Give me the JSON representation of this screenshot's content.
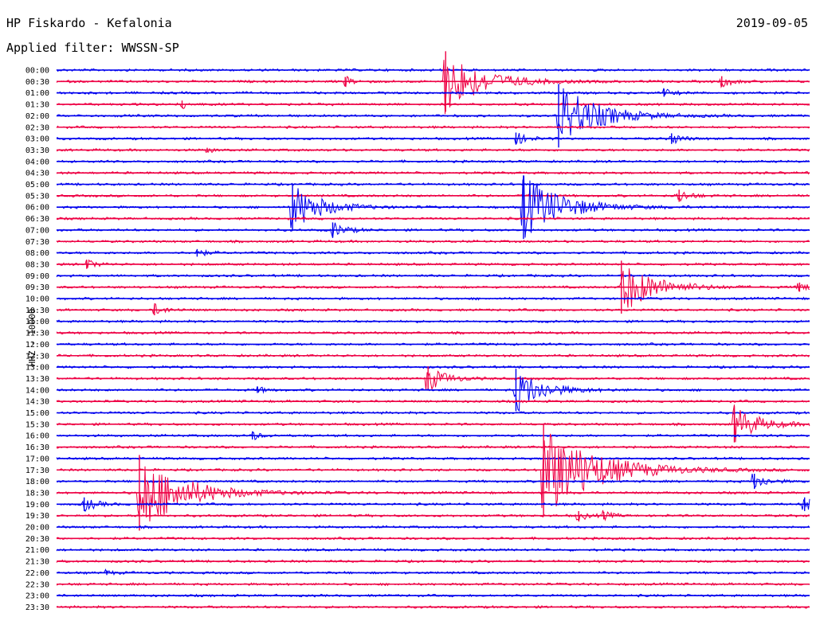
{
  "header": {
    "station": "HP Fiskardo - Kefalonia",
    "filter": "Applied filter: WWSSN-SP",
    "date": "2019-09-05"
  },
  "colors": {
    "even_trace": "#0000ee",
    "odd_trace": "#ee0044",
    "text": "#000000"
  },
  "chart_data": {
    "type": "line",
    "title": "HP Fiskardo - Kefalonia",
    "subtitle": "Applied filter: WWSSN-SP",
    "ylabel": "HHZ - 10000",
    "xlabel": "",
    "row_labels": [
      "00:00",
      "00:30",
      "01:00",
      "01:30",
      "02:00",
      "02:30",
      "03:00",
      "03:30",
      "04:00",
      "04:30",
      "05:00",
      "05:30",
      "06:00",
      "06:30",
      "07:00",
      "07:30",
      "08:00",
      "08:30",
      "09:00",
      "09:30",
      "10:00",
      "10:30",
      "11:00",
      "11:30",
      "12:00",
      "12:30",
      "13:00",
      "13:30",
      "14:00",
      "14:30",
      "15:00",
      "15:30",
      "16:00",
      "16:30",
      "17:00",
      "17:30",
      "18:00",
      "18:30",
      "19:00",
      "19:30",
      "20:00",
      "20:30",
      "21:00",
      "21:30",
      "22:00",
      "22:30",
      "23:00",
      "23:30"
    ],
    "row_minutes": 30,
    "events": [
      {
        "row": "00:30",
        "minute": 15.5,
        "amplitude": 40
      },
      {
        "row": "00:30",
        "minute": 11.5,
        "amplitude": 6
      },
      {
        "row": "00:30",
        "minute": 26.5,
        "amplitude": 7
      },
      {
        "row": "01:00",
        "minute": 24.2,
        "amplitude": 5
      },
      {
        "row": "01:30",
        "minute": 5.0,
        "amplitude": 5
      },
      {
        "row": "02:00",
        "minute": 20.0,
        "amplitude": 42
      },
      {
        "row": "03:00",
        "minute": 18.3,
        "amplitude": 8
      },
      {
        "row": "03:00",
        "minute": 24.5,
        "amplitude": 7
      },
      {
        "row": "03:30",
        "minute": 6.0,
        "amplitude": 3
      },
      {
        "row": "05:30",
        "minute": 24.8,
        "amplitude": 8
      },
      {
        "row": "06:00",
        "minute": 9.4,
        "amplitude": 30
      },
      {
        "row": "06:00",
        "minute": 18.6,
        "amplitude": 42
      },
      {
        "row": "07:00",
        "minute": 11.0,
        "amplitude": 10
      },
      {
        "row": "08:00",
        "minute": 5.6,
        "amplitude": 5
      },
      {
        "row": "08:30",
        "minute": 1.2,
        "amplitude": 6
      },
      {
        "row": "09:30",
        "minute": 22.5,
        "amplitude": 35
      },
      {
        "row": "09:30",
        "minute": 29.6,
        "amplitude": 6
      },
      {
        "row": "10:30",
        "minute": 3.9,
        "amplitude": 7
      },
      {
        "row": "13:30",
        "minute": 14.8,
        "amplitude": 16
      },
      {
        "row": "14:00",
        "minute": 18.3,
        "amplitude": 28
      },
      {
        "row": "14:00",
        "minute": 8.0,
        "amplitude": 4
      },
      {
        "row": "15:30",
        "minute": 27.0,
        "amplitude": 24
      },
      {
        "row": "16:00",
        "minute": 7.8,
        "amplitude": 5
      },
      {
        "row": "17:30",
        "minute": 19.4,
        "amplitude": 60
      },
      {
        "row": "18:00",
        "minute": 27.8,
        "amplitude": 10
      },
      {
        "row": "18:30",
        "minute": 3.3,
        "amplitude": 50
      },
      {
        "row": "19:00",
        "minute": 1.1,
        "amplitude": 9
      },
      {
        "row": "19:00",
        "minute": 29.8,
        "amplitude": 9
      },
      {
        "row": "19:30",
        "minute": 20.8,
        "amplitude": 6
      },
      {
        "row": "19:30",
        "minute": 21.8,
        "amplitude": 5
      },
      {
        "row": "22:00",
        "minute": 2.0,
        "amplitude": 3
      }
    ]
  }
}
